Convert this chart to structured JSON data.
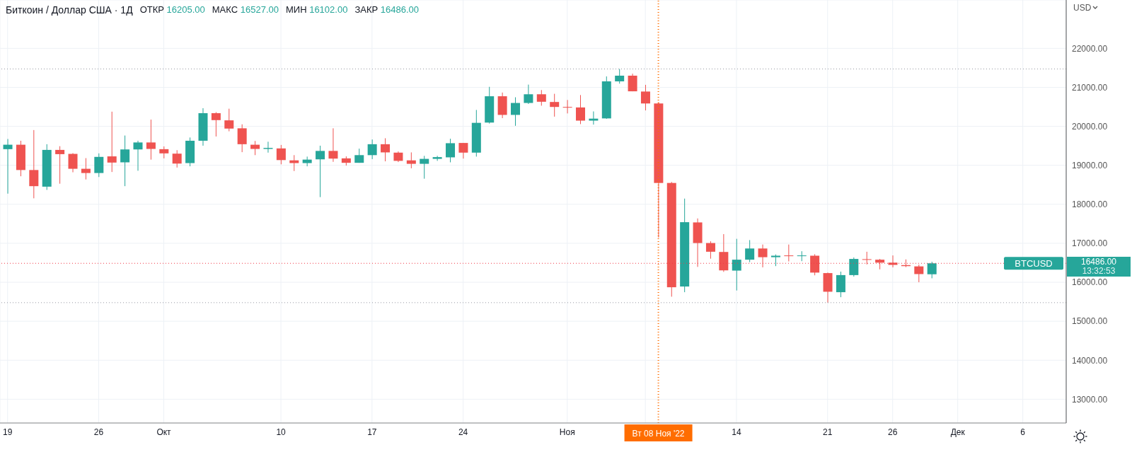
{
  "chart_data": {
    "type": "candlestick",
    "title": "Биткоин / Доллар США · 1Д",
    "ylabel": "USD",
    "x": [
      "2022-09-19",
      "2022-09-20",
      "2022-09-21",
      "2022-09-22",
      "2022-09-23",
      "2022-09-24",
      "2022-09-25",
      "2022-09-26",
      "2022-09-27",
      "2022-09-28",
      "2022-09-29",
      "2022-09-30",
      "2022-10-01",
      "2022-10-02",
      "2022-10-03",
      "2022-10-04",
      "2022-10-05",
      "2022-10-06",
      "2022-10-07",
      "2022-10-08",
      "2022-10-09",
      "2022-10-10",
      "2022-10-11",
      "2022-10-12",
      "2022-10-13",
      "2022-10-14",
      "2022-10-15",
      "2022-10-16",
      "2022-10-17",
      "2022-10-18",
      "2022-10-19",
      "2022-10-20",
      "2022-10-21",
      "2022-10-22",
      "2022-10-23",
      "2022-10-24",
      "2022-10-25",
      "2022-10-26",
      "2022-10-27",
      "2022-10-28",
      "2022-10-29",
      "2022-10-30",
      "2022-10-31",
      "2022-11-01",
      "2022-11-02",
      "2022-11-03",
      "2022-11-04",
      "2022-11-05",
      "2022-11-06",
      "2022-11-07",
      "2022-11-08",
      "2022-11-09",
      "2022-11-10",
      "2022-11-11",
      "2022-11-12",
      "2022-11-13",
      "2022-11-14",
      "2022-11-15",
      "2022-11-16",
      "2022-11-17",
      "2022-11-18",
      "2022-11-19",
      "2022-11-20",
      "2022-11-21",
      "2022-11-22",
      "2022-11-23",
      "2022-11-24",
      "2022-11-25",
      "2022-11-26",
      "2022-11-27",
      "2022-11-28",
      "2022-11-29"
    ],
    "ohlc": [
      [
        19414,
        19675,
        18273,
        19528
      ],
      [
        19528,
        19630,
        18719,
        18879
      ],
      [
        18879,
        19904,
        18153,
        18465
      ],
      [
        18452,
        19541,
        18369,
        19395
      ],
      [
        19395,
        19490,
        18528,
        19286
      ],
      [
        19293,
        19312,
        18821,
        18911
      ],
      [
        18911,
        19184,
        18637,
        18802
      ],
      [
        18802,
        19306,
        18700,
        19216
      ],
      [
        19229,
        20376,
        18828,
        19070
      ],
      [
        19076,
        19764,
        18465,
        19407
      ],
      [
        19407,
        19630,
        18860,
        19586
      ],
      [
        19586,
        20172,
        19146,
        19420
      ],
      [
        19414,
        19484,
        19178,
        19306
      ],
      [
        19299,
        19388,
        18942,
        19044
      ],
      [
        19057,
        19713,
        18974,
        19630
      ],
      [
        19630,
        20465,
        19503,
        20337
      ],
      [
        20337,
        20363,
        19739,
        20159
      ],
      [
        20153,
        20452,
        19872,
        19942
      ],
      [
        19949,
        20051,
        19337,
        19541
      ],
      [
        19528,
        19624,
        19261,
        19420
      ],
      [
        19420,
        19605,
        19325,
        19446
      ],
      [
        19433,
        19522,
        19025,
        19134
      ],
      [
        19127,
        19261,
        18853,
        19057
      ],
      [
        19057,
        19223,
        18974,
        19146
      ],
      [
        19153,
        19503,
        18184,
        19369
      ],
      [
        19369,
        19949,
        19089,
        19172
      ],
      [
        19178,
        19229,
        18993,
        19064
      ],
      [
        19064,
        19427,
        19064,
        19261
      ],
      [
        19261,
        19662,
        19159,
        19541
      ],
      [
        19541,
        19694,
        19102,
        19331
      ],
      [
        19325,
        19356,
        19083,
        19114
      ],
      [
        19127,
        19331,
        18923,
        19038
      ],
      [
        19038,
        19242,
        18656,
        19165
      ],
      [
        19165,
        19242,
        19114,
        19210
      ],
      [
        19204,
        19681,
        19076,
        19567
      ],
      [
        19573,
        19573,
        19172,
        19325
      ],
      [
        19325,
        20420,
        19223,
        20089
      ],
      [
        20096,
        21013,
        20070,
        20771
      ],
      [
        20771,
        20866,
        20210,
        20293
      ],
      [
        20293,
        20745,
        20013,
        20599
      ],
      [
        20599,
        21070,
        20573,
        20822
      ],
      [
        20822,
        20930,
        20529,
        20630
      ],
      [
        20624,
        20834,
        20248,
        20497
      ],
      [
        20497,
        20675,
        20331,
        20484
      ],
      [
        20484,
        20802,
        20057,
        20146
      ],
      [
        20146,
        20382,
        20044,
        20197
      ],
      [
        20203,
        21280,
        20191,
        21153
      ],
      [
        21153,
        21471,
        21095,
        21299
      ],
      [
        21299,
        21350,
        20898,
        20898
      ],
      [
        20892,
        21064,
        20408,
        20586
      ],
      [
        20586,
        20618,
        17146,
        18547
      ],
      [
        18547,
        18573,
        15630,
        15872
      ],
      [
        15891,
        18146,
        15745,
        17541
      ],
      [
        17535,
        17637,
        16394,
        17006
      ],
      [
        17006,
        17051,
        16605,
        16783
      ],
      [
        16777,
        17235,
        16267,
        16305
      ],
      [
        16299,
        17114,
        15789,
        16579
      ],
      [
        16579,
        17082,
        16516,
        16866
      ],
      [
        16866,
        16968,
        16382,
        16643
      ],
      [
        16643,
        16713,
        16414,
        16681
      ],
      [
        16688,
        16968,
        16535,
        16675
      ],
      [
        16675,
        16796,
        16541,
        16688
      ],
      [
        16681,
        16719,
        16178,
        16248
      ],
      [
        16235,
        16248,
        15477,
        15757
      ],
      [
        15745,
        16273,
        15617,
        16184
      ],
      [
        16184,
        16636,
        16146,
        16598
      ],
      [
        16592,
        16783,
        16458,
        16579
      ],
      [
        16579,
        16598,
        16331,
        16503
      ],
      [
        16503,
        16688,
        16382,
        16446
      ],
      [
        16440,
        16586,
        16388,
        16414
      ],
      [
        16407,
        16452,
        16000,
        16210
      ],
      [
        16205,
        16527,
        16102,
        16486
      ]
    ],
    "colors": [
      "#26a69a",
      "#ef5350",
      "#ef5350",
      "#26a69a",
      "#ef5350",
      "#ef5350",
      "#ef5350",
      "#26a69a",
      "#ef5350",
      "#26a69a",
      "#26a69a",
      "#ef5350",
      "#ef5350",
      "#ef5350",
      "#26a69a",
      "#26a69a",
      "#ef5350",
      "#ef5350",
      "#ef5350",
      "#ef5350",
      "#26a69a",
      "#ef5350",
      "#ef5350",
      "#26a69a",
      "#26a69a",
      "#ef5350",
      "#ef5350",
      "#26a69a",
      "#26a69a",
      "#ef5350",
      "#ef5350",
      "#ef5350",
      "#26a69a",
      "#26a69a",
      "#26a69a",
      "#ef5350",
      "#26a69a",
      "#26a69a",
      "#ef5350",
      "#26a69a",
      "#26a69a",
      "#ef5350",
      "#ef5350",
      "#ef5350",
      "#ef5350",
      "#26a69a",
      "#26a69a",
      "#26a69a",
      "#ef5350",
      "#ef5350",
      "#ef5350",
      "#ef5350",
      "#26a69a",
      "#ef5350",
      "#ef5350",
      "#ef5350",
      "#26a69a",
      "#26a69a",
      "#ef5350",
      "#26a69a",
      "#ef5350",
      "#26a69a",
      "#ef5350",
      "#ef5350",
      "#26a69a",
      "#26a69a",
      "#ef5350",
      "#ef5350",
      "#ef5350",
      "#ef5350",
      "#ef5350",
      "#26a69a"
    ],
    "xlim": [
      "2022-09-18T10:00",
      "2022-12-09T08:00"
    ],
    "xticks": [
      {
        "value": "2022-09-19",
        "label": "19"
      },
      {
        "value": "2022-09-26",
        "label": "26"
      },
      {
        "value": "2022-10-01",
        "label": "Окт"
      },
      {
        "value": "2022-10-10",
        "label": "10"
      },
      {
        "value": "2022-10-17",
        "label": "17"
      },
      {
        "value": "2022-10-24",
        "label": "24"
      },
      {
        "value": "2022-11-01",
        "label": "Ноя"
      },
      {
        "value": "2022-11-07",
        "label": null
      },
      {
        "value": "2022-11-14",
        "label": "14"
      },
      {
        "value": "2022-11-21",
        "label": "21"
      },
      {
        "value": "2022-11-26",
        "label": "26"
      },
      {
        "value": "2022-12-01",
        "label": "Дек"
      },
      {
        "value": "2022-12-06",
        "label": "6"
      }
    ],
    "ylim": [
      12390,
      23240
    ],
    "yticks": [
      {
        "value": 13000,
        "label": "13000.00"
      },
      {
        "value": 14000,
        "label": "14000.00"
      },
      {
        "value": 15000,
        "label": "15000.00"
      },
      {
        "value": 16000,
        "label": "16000.00"
      },
      {
        "value": 17000,
        "label": "17000.00"
      },
      {
        "value": 18000,
        "label": "18000.00"
      },
      {
        "value": 19000,
        "label": "19000.00"
      },
      {
        "value": 20000,
        "label": "20000.00"
      },
      {
        "value": 21000,
        "label": "21000.00"
      },
      {
        "value": 22000,
        "label": "22000.00"
      }
    ],
    "grid": true,
    "ref_lines": [
      {
        "axis": "y",
        "value": 21471,
        "color": "#9598a1",
        "line_style": "dotted"
      },
      {
        "axis": "y",
        "value": 15477,
        "color": "#9598a1",
        "line_style": "dotted"
      },
      {
        "axis": "y",
        "value": 16486,
        "label": "BTCUSD",
        "color": "#f23645",
        "line_style": "dotted"
      },
      {
        "axis": "x",
        "value": "2022-11-08",
        "label": "Вт 08 Ноя '22",
        "color": "#ff6d00",
        "line_style": "dotted"
      }
    ],
    "annotations": [
      "ОТКР 16205.00",
      "МАКС 16527.00",
      "МИН 16102.00",
      "ЗАКР 16486.00",
      "16486.00",
      "13:32:53"
    ]
  }
}
